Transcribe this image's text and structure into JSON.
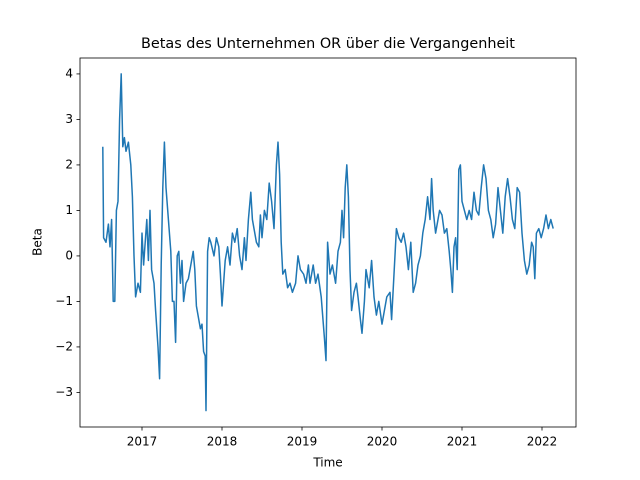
{
  "chart_data": {
    "type": "line",
    "title": "Betas des Unternehmen OR über die Vergangenheit",
    "x_label": "Time",
    "y_label": "Beta",
    "color": "#1f77b4",
    "xlim": [
      2016.225,
      2022.425
    ],
    "ylim": [
      -3.76,
      4.35
    ],
    "xticks": [
      2017,
      2018,
      2019,
      2020,
      2021,
      2022
    ],
    "yticks": [
      {
        "value": -3,
        "label": "−3"
      },
      {
        "value": -2,
        "label": "−2"
      },
      {
        "value": -1,
        "label": "−1"
      },
      0,
      1,
      2,
      3,
      4
    ],
    "x": [
      2016.51,
      2016.52,
      2016.55,
      2016.58,
      2016.6,
      2016.62,
      2016.64,
      2016.66,
      2016.68,
      2016.7,
      2016.72,
      2016.74,
      2016.76,
      2016.78,
      2016.8,
      2016.83,
      2016.86,
      2016.88,
      2016.9,
      2016.92,
      2016.95,
      2016.98,
      2017.0,
      2017.02,
      2017.04,
      2017.06,
      2017.08,
      2017.1,
      2017.12,
      2017.15,
      2017.17,
      2017.2,
      2017.22,
      2017.24,
      2017.26,
      2017.28,
      2017.3,
      2017.33,
      2017.36,
      2017.38,
      2017.4,
      2017.42,
      2017.44,
      2017.46,
      2017.48,
      2017.5,
      2017.52,
      2017.55,
      2017.58,
      2017.62,
      2017.64,
      2017.66,
      2017.68,
      2017.7,
      2017.73,
      2017.75,
      2017.77,
      2017.79,
      2017.8,
      2017.82,
      2017.84,
      2017.86,
      2017.9,
      2017.93,
      2017.96,
      2017.98,
      2018.0,
      2018.02,
      2018.04,
      2018.07,
      2018.1,
      2018.13,
      2018.16,
      2018.19,
      2018.22,
      2018.25,
      2018.28,
      2018.3,
      2018.33,
      2018.36,
      2018.38,
      2018.4,
      2018.43,
      2018.46,
      2018.48,
      2018.5,
      2018.53,
      2018.56,
      2018.59,
      2018.62,
      2018.65,
      2018.68,
      2018.7,
      2018.72,
      2018.74,
      2018.76,
      2018.79,
      2018.82,
      2018.85,
      2018.88,
      2018.92,
      2018.95,
      2018.98,
      2019.02,
      2019.05,
      2019.08,
      2019.1,
      2019.14,
      2019.17,
      2019.2,
      2019.24,
      2019.28,
      2019.3,
      2019.32,
      2019.35,
      2019.38,
      2019.42,
      2019.45,
      2019.48,
      2019.5,
      2019.52,
      2019.54,
      2019.56,
      2019.58,
      2019.6,
      2019.62,
      2019.65,
      2019.68,
      2019.7,
      2019.73,
      2019.75,
      2019.78,
      2019.8,
      2019.84,
      2019.87,
      2019.9,
      2019.93,
      2019.96,
      2020.0,
      2020.03,
      2020.06,
      2020.1,
      2020.12,
      2020.15,
      2020.18,
      2020.21,
      2020.24,
      2020.27,
      2020.3,
      2020.33,
      2020.36,
      2020.39,
      2020.42,
      2020.45,
      2020.48,
      2020.51,
      2020.54,
      2020.57,
      2020.6,
      2020.62,
      2020.64,
      2020.67,
      2020.7,
      2020.72,
      2020.75,
      2020.78,
      2020.81,
      2020.84,
      2020.86,
      2020.88,
      2020.9,
      2020.92,
      2020.94,
      2020.96,
      2020.98,
      2021.0,
      2021.03,
      2021.06,
      2021.09,
      2021.12,
      2021.15,
      2021.18,
      2021.21,
      2021.24,
      2021.27,
      2021.3,
      2021.33,
      2021.36,
      2021.39,
      2021.42,
      2021.45,
      2021.48,
      2021.51,
      2021.54,
      2021.57,
      2021.6,
      2021.63,
      2021.66,
      2021.69,
      2021.72,
      2021.75,
      2021.78,
      2021.81,
      2021.84,
      2021.87,
      2021.89,
      2021.91,
      2021.93,
      2021.96,
      2021.99,
      2022.02,
      2022.05,
      2022.08,
      2022.11,
      2022.14
    ],
    "values": [
      2.4,
      0.4,
      0.3,
      0.7,
      0.2,
      0.8,
      -1.0,
      -1.0,
      1.0,
      1.2,
      3.0,
      4.0,
      2.4,
      2.6,
      2.3,
      2.5,
      2.0,
      1.3,
      0.0,
      -0.9,
      -0.6,
      -0.8,
      0.5,
      -0.2,
      0.3,
      0.8,
      -0.1,
      1.0,
      -0.3,
      -0.6,
      -1.2,
      -2.0,
      -2.7,
      -0.2,
      1.5,
      2.5,
      1.5,
      0.8,
      0.1,
      -1.0,
      -1.0,
      -1.9,
      0.0,
      0.1,
      -0.6,
      -0.1,
      -1.0,
      -0.6,
      -0.5,
      -0.1,
      0.1,
      -0.3,
      -1.1,
      -1.3,
      -1.6,
      -1.5,
      -2.1,
      -2.2,
      -3.4,
      0.1,
      0.4,
      0.3,
      0.0,
      0.4,
      0.2,
      -0.4,
      -1.1,
      -0.6,
      -0.1,
      0.2,
      -0.2,
      0.5,
      0.3,
      0.6,
      0.0,
      -0.3,
      0.4,
      -0.1,
      0.8,
      1.4,
      0.8,
      0.6,
      0.3,
      0.2,
      0.9,
      0.4,
      1.0,
      0.8,
      1.6,
      1.2,
      0.6,
      2.0,
      2.5,
      1.8,
      0.3,
      -0.4,
      -0.3,
      -0.7,
      -0.6,
      -0.8,
      -0.6,
      0.0,
      -0.3,
      -0.4,
      -0.6,
      -0.2,
      -0.6,
      -0.2,
      -0.6,
      -0.4,
      -0.9,
      -1.8,
      -2.3,
      0.3,
      -0.4,
      -0.2,
      -0.6,
      0.1,
      0.3,
      1.0,
      0.4,
      1.5,
      2.0,
      1.3,
      -0.3,
      -1.2,
      -0.8,
      -0.6,
      -0.9,
      -1.4,
      -1.7,
      -1.0,
      -0.3,
      -0.7,
      -0.1,
      -0.9,
      -1.3,
      -1.0,
      -1.5,
      -1.2,
      -0.9,
      -0.8,
      -1.4,
      -0.4,
      0.6,
      0.4,
      0.3,
      0.5,
      0.2,
      -0.3,
      0.3,
      -0.8,
      -0.6,
      -0.2,
      0.0,
      0.5,
      0.8,
      1.3,
      0.8,
      1.7,
      1.0,
      0.5,
      0.8,
      1.0,
      0.9,
      0.5,
      0.6,
      0.1,
      -0.3,
      -0.8,
      0.2,
      0.4,
      -0.3,
      1.9,
      2.0,
      1.2,
      1.0,
      0.8,
      1.0,
      0.8,
      1.4,
      1.0,
      0.9,
      1.5,
      2.0,
      1.7,
      1.0,
      0.8,
      0.4,
      0.7,
      1.5,
      1.0,
      0.5,
      1.3,
      1.7,
      1.3,
      0.8,
      0.6,
      1.5,
      1.4,
      0.5,
      -0.1,
      -0.4,
      -0.2,
      0.3,
      0.2,
      -0.5,
      0.5,
      0.6,
      0.4,
      0.6,
      0.9,
      0.6,
      0.8,
      0.6
    ]
  }
}
